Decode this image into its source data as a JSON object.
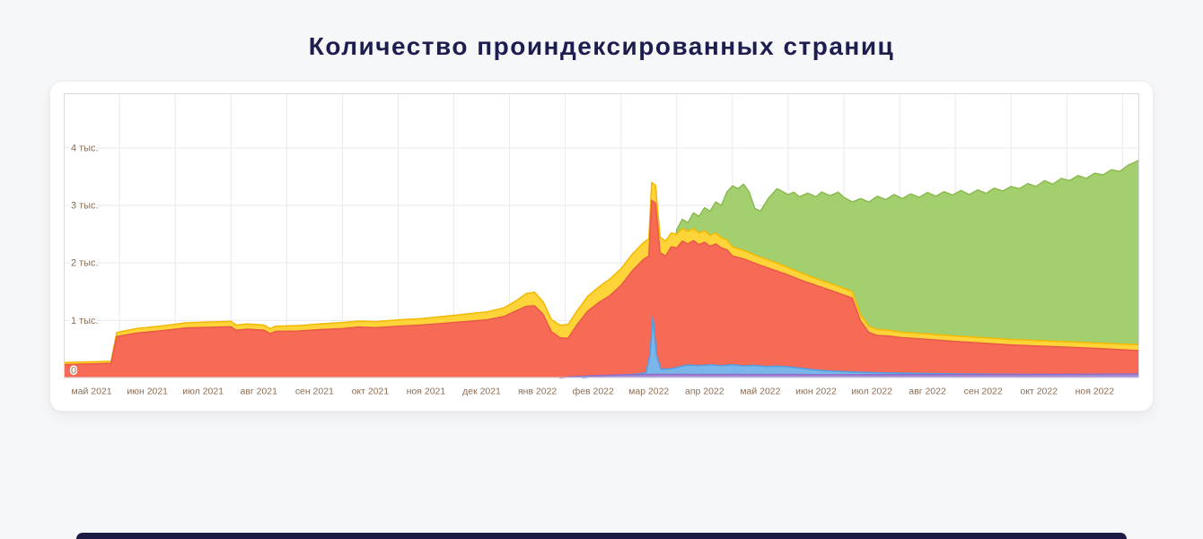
{
  "page": {
    "title": "Количество проиндексированных страниц"
  },
  "footer": {
    "bar_color": "#1b1b46"
  },
  "chart_data": {
    "type": "area",
    "title": "Количество проиндексированных страниц",
    "render_style": "overlapping areas with baseline 0, drawn back-to-front (green, yellow, red, blue, purple)",
    "grid": true,
    "legend": "none",
    "x_unit": "months elapsed since начало май 2021",
    "x_range": [
      0,
      19.3
    ],
    "ylim": [
      0,
      4950
    ],
    "grid_color": "#e9e9ee",
    "border_color": "#d8d8df",
    "label_color": "#8d6e55",
    "xlabels": [
      "май 2021",
      "июн 2021",
      "июл 2021",
      "авг 2021",
      "сен 2021",
      "окт 2021",
      "ноя 2021",
      "дек 2021",
      "янв 2022",
      "фев 2022",
      "мар 2022",
      "апр 2022",
      "май 2022",
      "июн 2022",
      "июл 2022",
      "авг 2022",
      "сен 2022",
      "окт 2022",
      "ноя 2022"
    ],
    "yticks": [
      {
        "value": 0,
        "label": "0"
      },
      {
        "value": 1000,
        "label": "1 тыс."
      },
      {
        "value": 2000,
        "label": "2 тыс."
      },
      {
        "value": 3000,
        "label": "3 тыс."
      },
      {
        "value": 4000,
        "label": "4 тыс."
      }
    ],
    "series": [
      {
        "name": "green-area",
        "fill": "#a4cf6e",
        "stroke": "#8abb4f",
        "points": [
          [
            10.9,
            1600
          ],
          [
            11.0,
            2580
          ],
          [
            11.1,
            2760
          ],
          [
            11.2,
            2700
          ],
          [
            11.3,
            2870
          ],
          [
            11.4,
            2810
          ],
          [
            11.5,
            2960
          ],
          [
            11.6,
            2900
          ],
          [
            11.7,
            3060
          ],
          [
            11.8,
            3000
          ],
          [
            11.9,
            3230
          ],
          [
            12.0,
            3340
          ],
          [
            12.1,
            3290
          ],
          [
            12.2,
            3370
          ],
          [
            12.3,
            3230
          ],
          [
            12.4,
            2950
          ],
          [
            12.5,
            2900
          ],
          [
            12.65,
            3130
          ],
          [
            12.8,
            3290
          ],
          [
            12.9,
            3240
          ],
          [
            13.0,
            3190
          ],
          [
            13.1,
            3230
          ],
          [
            13.2,
            3150
          ],
          [
            13.35,
            3215
          ],
          [
            13.5,
            3150
          ],
          [
            13.6,
            3235
          ],
          [
            13.75,
            3170
          ],
          [
            13.9,
            3230
          ],
          [
            14.0,
            3140
          ],
          [
            14.15,
            3060
          ],
          [
            14.3,
            3120
          ],
          [
            14.45,
            3060
          ],
          [
            14.6,
            3160
          ],
          [
            14.75,
            3100
          ],
          [
            14.9,
            3190
          ],
          [
            15.05,
            3120
          ],
          [
            15.2,
            3200
          ],
          [
            15.35,
            3140
          ],
          [
            15.5,
            3225
          ],
          [
            15.65,
            3160
          ],
          [
            15.8,
            3240
          ],
          [
            15.95,
            3180
          ],
          [
            16.1,
            3260
          ],
          [
            16.25,
            3190
          ],
          [
            16.4,
            3270
          ],
          [
            16.55,
            3210
          ],
          [
            16.7,
            3300
          ],
          [
            16.85,
            3250
          ],
          [
            17.0,
            3330
          ],
          [
            17.15,
            3290
          ],
          [
            17.3,
            3380
          ],
          [
            17.45,
            3330
          ],
          [
            17.6,
            3430
          ],
          [
            17.75,
            3370
          ],
          [
            17.9,
            3470
          ],
          [
            18.05,
            3430
          ],
          [
            18.2,
            3520
          ],
          [
            18.35,
            3470
          ],
          [
            18.5,
            3560
          ],
          [
            18.65,
            3530
          ],
          [
            18.8,
            3620
          ],
          [
            18.95,
            3590
          ],
          [
            19.1,
            3700
          ],
          [
            19.2,
            3740
          ],
          [
            19.3,
            3790
          ]
        ]
      },
      {
        "name": "yellow-area",
        "fill": "#ffd439",
        "stroke": "#f3b800",
        "points": [
          [
            0,
            270
          ],
          [
            0.85,
            290
          ],
          [
            0.95,
            790
          ],
          [
            1.3,
            860
          ],
          [
            1.8,
            910
          ],
          [
            2.2,
            960
          ],
          [
            2.6,
            975
          ],
          [
            3.0,
            985
          ],
          [
            3.1,
            920
          ],
          [
            3.3,
            940
          ],
          [
            3.6,
            920
          ],
          [
            3.7,
            860
          ],
          [
            3.8,
            900
          ],
          [
            4.2,
            910
          ],
          [
            4.6,
            940
          ],
          [
            5.0,
            965
          ],
          [
            5.3,
            990
          ],
          [
            5.6,
            980
          ],
          [
            6.0,
            1010
          ],
          [
            6.4,
            1030
          ],
          [
            6.8,
            1070
          ],
          [
            7.2,
            1110
          ],
          [
            7.6,
            1150
          ],
          [
            7.9,
            1220
          ],
          [
            8.1,
            1330
          ],
          [
            8.3,
            1470
          ],
          [
            8.45,
            1490
          ],
          [
            8.6,
            1330
          ],
          [
            8.75,
            1020
          ],
          [
            8.9,
            920
          ],
          [
            9.05,
            930
          ],
          [
            9.2,
            1150
          ],
          [
            9.4,
            1420
          ],
          [
            9.6,
            1580
          ],
          [
            9.8,
            1720
          ],
          [
            10.0,
            1900
          ],
          [
            10.2,
            2150
          ],
          [
            10.4,
            2350
          ],
          [
            10.5,
            2420
          ],
          [
            10.55,
            3400
          ],
          [
            10.62,
            3350
          ],
          [
            10.7,
            2450
          ],
          [
            10.8,
            2380
          ],
          [
            10.9,
            2520
          ],
          [
            11.0,
            2500
          ],
          [
            11.1,
            2600
          ],
          [
            11.2,
            2550
          ],
          [
            11.3,
            2600
          ],
          [
            11.4,
            2520
          ],
          [
            11.5,
            2560
          ],
          [
            11.6,
            2480
          ],
          [
            11.7,
            2520
          ],
          [
            11.8,
            2440
          ],
          [
            11.9,
            2400
          ],
          [
            12.0,
            2280
          ],
          [
            12.2,
            2220
          ],
          [
            12.5,
            2100
          ],
          [
            12.8,
            2000
          ],
          [
            13.0,
            1920
          ],
          [
            13.2,
            1840
          ],
          [
            13.5,
            1730
          ],
          [
            13.8,
            1630
          ],
          [
            14.0,
            1560
          ],
          [
            14.15,
            1500
          ],
          [
            14.3,
            1100
          ],
          [
            14.45,
            900
          ],
          [
            14.6,
            840
          ],
          [
            14.8,
            830
          ],
          [
            15.0,
            800
          ],
          [
            15.3,
            780
          ],
          [
            15.6,
            760
          ],
          [
            16.0,
            730
          ],
          [
            16.5,
            700
          ],
          [
            17.0,
            670
          ],
          [
            17.5,
            650
          ],
          [
            18.0,
            630
          ],
          [
            18.5,
            610
          ],
          [
            19.0,
            590
          ],
          [
            19.3,
            580
          ]
        ]
      },
      {
        "name": "red-area",
        "fill": "#f66a56",
        "stroke": "#e85a45",
        "points": [
          [
            0,
            230
          ],
          [
            0.5,
            245
          ],
          [
            0.85,
            255
          ],
          [
            0.95,
            720
          ],
          [
            1.3,
            780
          ],
          [
            1.8,
            825
          ],
          [
            2.2,
            870
          ],
          [
            2.6,
            880
          ],
          [
            3.0,
            890
          ],
          [
            3.1,
            830
          ],
          [
            3.3,
            850
          ],
          [
            3.6,
            830
          ],
          [
            3.7,
            770
          ],
          [
            3.8,
            810
          ],
          [
            4.2,
            815
          ],
          [
            4.6,
            840
          ],
          [
            5.0,
            860
          ],
          [
            5.3,
            885
          ],
          [
            5.6,
            875
          ],
          [
            6.0,
            900
          ],
          [
            6.4,
            920
          ],
          [
            6.8,
            950
          ],
          [
            7.2,
            980
          ],
          [
            7.6,
            1010
          ],
          [
            7.9,
            1070
          ],
          [
            8.1,
            1160
          ],
          [
            8.3,
            1245
          ],
          [
            8.45,
            1255
          ],
          [
            8.6,
            1110
          ],
          [
            8.75,
            810
          ],
          [
            8.9,
            700
          ],
          [
            9.05,
            690
          ],
          [
            9.2,
            910
          ],
          [
            9.4,
            1160
          ],
          [
            9.6,
            1310
          ],
          [
            9.8,
            1430
          ],
          [
            10.0,
            1610
          ],
          [
            10.2,
            1860
          ],
          [
            10.4,
            2060
          ],
          [
            10.5,
            2120
          ],
          [
            10.55,
            3090
          ],
          [
            10.62,
            3040
          ],
          [
            10.7,
            2180
          ],
          [
            10.8,
            2120
          ],
          [
            10.9,
            2280
          ],
          [
            11.0,
            2260
          ],
          [
            11.1,
            2380
          ],
          [
            11.2,
            2330
          ],
          [
            11.3,
            2390
          ],
          [
            11.4,
            2320
          ],
          [
            11.5,
            2360
          ],
          [
            11.6,
            2290
          ],
          [
            11.7,
            2330
          ],
          [
            11.8,
            2260
          ],
          [
            11.9,
            2230
          ],
          [
            12.0,
            2120
          ],
          [
            12.2,
            2070
          ],
          [
            12.5,
            1960
          ],
          [
            12.8,
            1860
          ],
          [
            13.0,
            1790
          ],
          [
            13.2,
            1710
          ],
          [
            13.5,
            1610
          ],
          [
            13.8,
            1510
          ],
          [
            14.0,
            1440
          ],
          [
            14.15,
            1390
          ],
          [
            14.3,
            990
          ],
          [
            14.45,
            790
          ],
          [
            14.6,
            740
          ],
          [
            14.8,
            730
          ],
          [
            15.0,
            705
          ],
          [
            15.3,
            685
          ],
          [
            15.6,
            665
          ],
          [
            16.0,
            635
          ],
          [
            16.5,
            605
          ],
          [
            17.0,
            575
          ],
          [
            17.5,
            555
          ],
          [
            18.0,
            535
          ],
          [
            18.5,
            515
          ],
          [
            19.0,
            490
          ],
          [
            19.3,
            475
          ]
        ]
      },
      {
        "name": "blue-area",
        "fill": "#7ab6ea",
        "stroke": "#4f9de2",
        "points": [
          [
            9.3,
            0
          ],
          [
            9.6,
            25
          ],
          [
            10.0,
            50
          ],
          [
            10.3,
            70
          ],
          [
            10.45,
            90
          ],
          [
            10.52,
            400
          ],
          [
            10.57,
            1060
          ],
          [
            10.64,
            380
          ],
          [
            10.72,
            150
          ],
          [
            10.9,
            160
          ],
          [
            11.0,
            185
          ],
          [
            11.2,
            225
          ],
          [
            11.4,
            215
          ],
          [
            11.6,
            230
          ],
          [
            11.8,
            215
          ],
          [
            12.0,
            230
          ],
          [
            12.2,
            210
          ],
          [
            12.4,
            220
          ],
          [
            12.6,
            200
          ],
          [
            12.8,
            205
          ],
          [
            13.0,
            195
          ],
          [
            13.2,
            175
          ],
          [
            13.4,
            150
          ],
          [
            13.6,
            130
          ],
          [
            13.8,
            118
          ],
          [
            14.0,
            110
          ],
          [
            14.3,
            100
          ],
          [
            14.6,
            92
          ],
          [
            15.0,
            85
          ],
          [
            15.5,
            78
          ],
          [
            16.0,
            72
          ],
          [
            16.5,
            68
          ],
          [
            17.0,
            64
          ],
          [
            17.5,
            60
          ],
          [
            18.0,
            58
          ],
          [
            18.5,
            56
          ],
          [
            19.0,
            55
          ],
          [
            19.3,
            55
          ]
        ]
      },
      {
        "name": "purple-area",
        "fill": "#a68cd5",
        "stroke": "#8d6ec7",
        "points": [
          [
            8.9,
            0
          ],
          [
            9.1,
            20
          ],
          [
            9.4,
            35
          ],
          [
            9.7,
            45
          ],
          [
            10.0,
            55
          ],
          [
            10.3,
            60
          ],
          [
            10.6,
            62
          ],
          [
            11.0,
            62
          ],
          [
            11.5,
            60
          ],
          [
            12.0,
            62
          ],
          [
            12.5,
            60
          ],
          [
            13.0,
            60
          ],
          [
            13.5,
            58
          ],
          [
            14.0,
            58
          ],
          [
            14.5,
            58
          ],
          [
            15.0,
            58
          ],
          [
            15.5,
            58
          ],
          [
            16.0,
            60
          ],
          [
            16.5,
            60
          ],
          [
            17.0,
            62
          ],
          [
            17.5,
            62
          ],
          [
            18.0,
            64
          ],
          [
            18.5,
            66
          ],
          [
            19.0,
            68
          ],
          [
            19.3,
            72
          ]
        ]
      }
    ]
  }
}
